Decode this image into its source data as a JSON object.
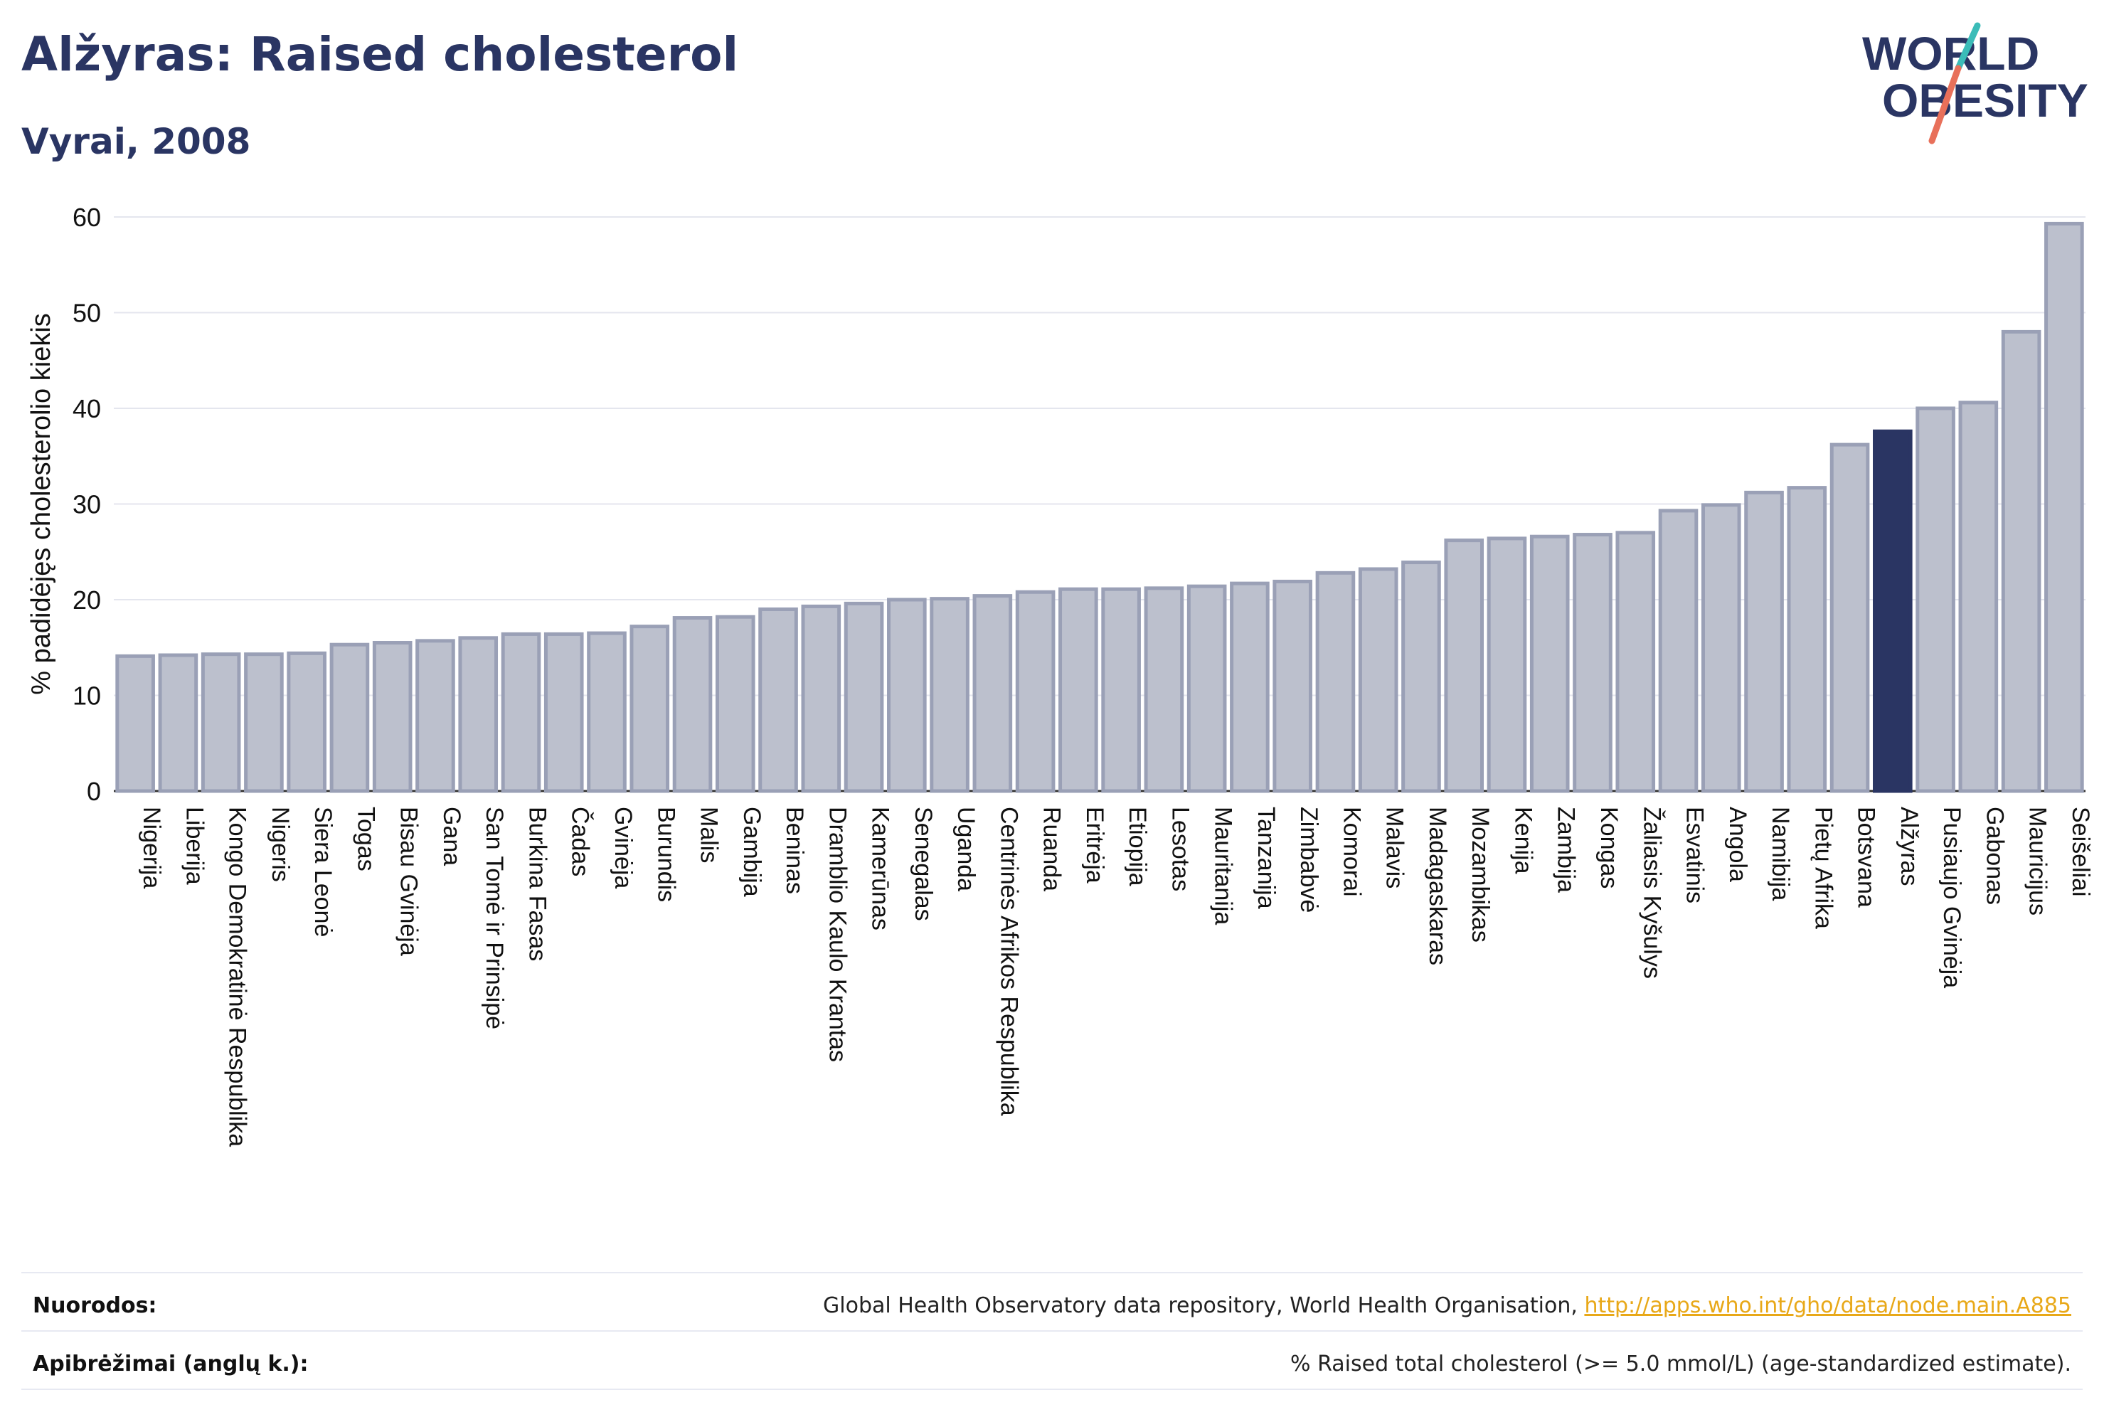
{
  "header": {
    "title": "Alžyras: Raised cholesterol",
    "subtitle": "Vyrai, 2008"
  },
  "logo": {
    "line1": "WORLD",
    "line2": "OBESITY",
    "colors": {
      "text": "#2a3563",
      "slash_top": "#3bbcb8",
      "slash_bottom": "#e8705a"
    }
  },
  "colors": {
    "bar": "#bcc0cd",
    "bar_stroke": "#9aa0b6",
    "highlight": "#2a3563",
    "grid": "#e4e6ee",
    "axis": "#333333"
  },
  "chart_data": {
    "type": "bar",
    "title": "Alžyras: Raised cholesterol",
    "ylabel": "% padidėjęs cholesterolio kiekis",
    "xlabel": "",
    "ylim": [
      0,
      60
    ],
    "yticks": [
      0,
      10,
      20,
      30,
      40,
      50,
      60
    ],
    "grid": true,
    "highlight": "Alžyras",
    "categories": [
      "Nigerija",
      "Liberija",
      "Kongo Demokratinė Respublika",
      "Nigeris",
      "Siera Leonė",
      "Togas",
      "Bisau Gvinėja",
      "Gana",
      "San Tomė ir Prinsipė",
      "Burkina Fasas",
      "Čadas",
      "Gvinėja",
      "Burundis",
      "Malis",
      "Gambija",
      "Beninas",
      "Dramblio Kaulo Krantas",
      "Kamerūnas",
      "Senegalas",
      "Uganda",
      "Centrinės Afrikos Respublika",
      "Ruanda",
      "Eritrėja",
      "Etiopija",
      "Lesotas",
      "Mauritanija",
      "Tanzanija",
      "Zimbabvė",
      "Komorai",
      "Malavis",
      "Madagaskaras",
      "Mozambikas",
      "Kenija",
      "Zambija",
      "Kongas",
      "Žaliasis Kyšulys",
      "Esvatinis",
      "Angola",
      "Namibija",
      "Pietų Afrika",
      "Botsvana",
      "Alžyras",
      "Pusiaujo Gvinėja",
      "Gabonas",
      "Mauricijus",
      "Seišeliai"
    ],
    "values": [
      14.1,
      14.2,
      14.3,
      14.3,
      14.4,
      15.3,
      15.5,
      15.7,
      16.0,
      16.4,
      16.4,
      16.5,
      17.2,
      18.1,
      18.2,
      19.0,
      19.3,
      19.6,
      20.0,
      20.1,
      20.4,
      20.8,
      21.1,
      21.1,
      21.2,
      21.4,
      21.7,
      21.9,
      22.8,
      23.2,
      23.9,
      26.2,
      26.4,
      26.6,
      26.8,
      27.0,
      29.3,
      29.9,
      31.2,
      31.7,
      36.2,
      37.6,
      40.0,
      40.6,
      48.0,
      59.3
    ]
  },
  "footer": {
    "sources_label": "Nuorodos:",
    "sources_text": "Global Health Observatory data repository, World Health Organisation, ",
    "sources_link": "http://apps.who.int/gho/data/node.main.A885",
    "definitions_label": "Apibrėžimai (anglų k.):",
    "definitions_text": "% Raised total cholesterol (>= 5.0 mmol/L) (age-standardized estimate)."
  }
}
